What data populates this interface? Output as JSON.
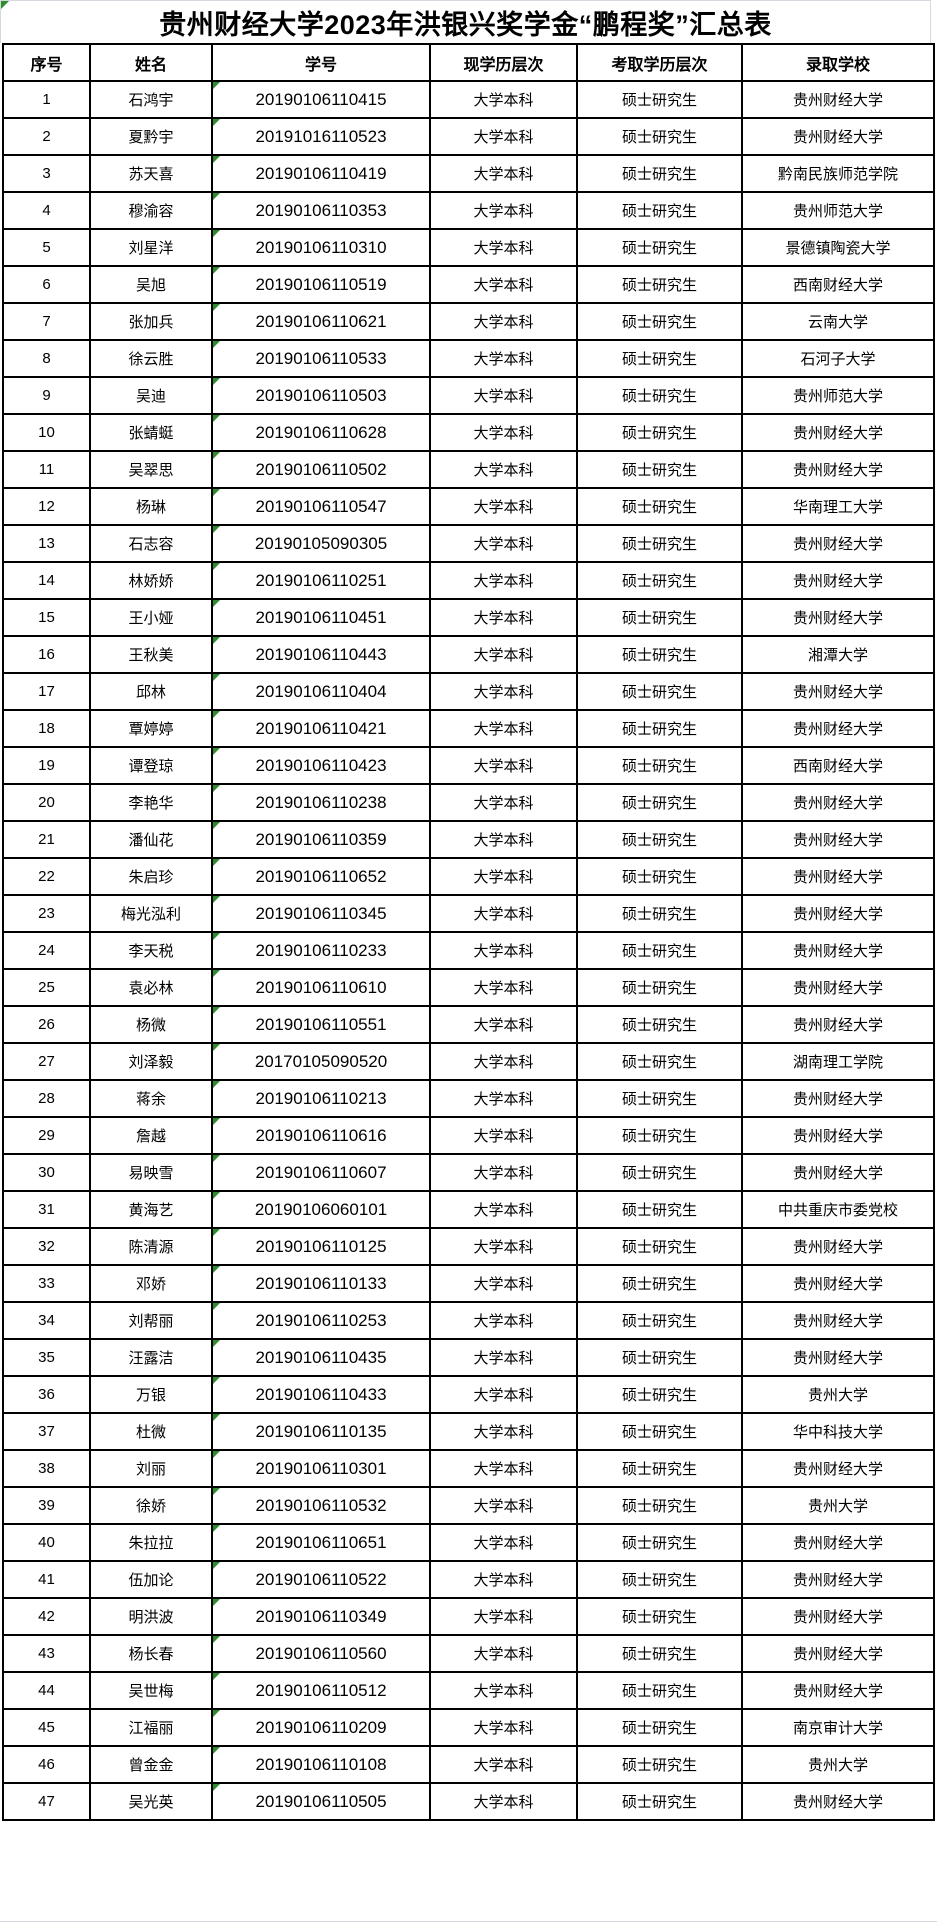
{
  "page": {
    "background_color": "#eef0f4",
    "sheet_color": "#ffffff",
    "gridline_color": "#d4d9e0",
    "table_border_color": "#000000",
    "error_marker_color": "#2e8b2e"
  },
  "title": {
    "text": "贵州财经大学2023年洪银兴奖学金“鹏程奖”汇总表"
  },
  "table": {
    "headers": [
      "序号",
      "姓名",
      "学号",
      "现学历层次",
      "考取学历层次",
      "录取学校"
    ],
    "rows": [
      [
        "1",
        "石鸿宇",
        "20190106110415",
        "大学本科",
        "硕士研究生",
        "贵州财经大学"
      ],
      [
        "2",
        "夏黔宇",
        "20191016110523",
        "大学本科",
        "硕士研究生",
        "贵州财经大学"
      ],
      [
        "3",
        "苏天喜",
        "20190106110419",
        "大学本科",
        "硕士研究生",
        "黔南民族师范学院"
      ],
      [
        "4",
        "穆渝容",
        "20190106110353",
        "大学本科",
        "硕士研究生",
        "贵州师范大学"
      ],
      [
        "5",
        "刘星洋",
        "20190106110310",
        "大学本科",
        "硕士研究生",
        "景德镇陶瓷大学"
      ],
      [
        "6",
        "吴旭",
        "20190106110519",
        "大学本科",
        "硕士研究生",
        "西南财经大学"
      ],
      [
        "7",
        "张加兵",
        "20190106110621",
        "大学本科",
        "硕士研究生",
        "云南大学"
      ],
      [
        "8",
        "徐云胜",
        "20190106110533",
        "大学本科",
        "硕士研究生",
        "石河子大学"
      ],
      [
        "9",
        "吴迪",
        "20190106110503",
        "大学本科",
        "硕士研究生",
        "贵州师范大学"
      ],
      [
        "10",
        "张蜻蜓",
        "20190106110628",
        "大学本科",
        "硕士研究生",
        "贵州财经大学"
      ],
      [
        "11",
        "吴翠思",
        "20190106110502",
        "大学本科",
        "硕士研究生",
        "贵州财经大学"
      ],
      [
        "12",
        "杨琳",
        "20190106110547",
        "大学本科",
        "硕士研究生",
        "华南理工大学"
      ],
      [
        "13",
        "石志容",
        "20190105090305",
        "大学本科",
        "硕士研究生",
        "贵州财经大学"
      ],
      [
        "14",
        "林娇娇",
        "20190106110251",
        "大学本科",
        "硕士研究生",
        "贵州财经大学"
      ],
      [
        "15",
        "王小娅",
        "20190106110451",
        "大学本科",
        "硕士研究生",
        "贵州财经大学"
      ],
      [
        "16",
        "王秋美",
        "20190106110443",
        "大学本科",
        "硕士研究生",
        "湘潭大学"
      ],
      [
        "17",
        "邱林",
        "20190106110404",
        "大学本科",
        "硕士研究生",
        "贵州财经大学"
      ],
      [
        "18",
        "覃婷婷",
        "20190106110421",
        "大学本科",
        "硕士研究生",
        "贵州财经大学"
      ],
      [
        "19",
        "谭登琼",
        "20190106110423",
        "大学本科",
        "硕士研究生",
        "西南财经大学"
      ],
      [
        "20",
        "李艳华",
        "20190106110238",
        "大学本科",
        "硕士研究生",
        "贵州财经大学"
      ],
      [
        "21",
        "潘仙花",
        "20190106110359",
        "大学本科",
        "硕士研究生",
        "贵州财经大学"
      ],
      [
        "22",
        "朱启珍",
        "20190106110652",
        "大学本科",
        "硕士研究生",
        "贵州财经大学"
      ],
      [
        "23",
        "梅光泓利",
        "20190106110345",
        "大学本科",
        "硕士研究生",
        "贵州财经大学"
      ],
      [
        "24",
        "李天税",
        "20190106110233",
        "大学本科",
        "硕士研究生",
        "贵州财经大学"
      ],
      [
        "25",
        "袁必林",
        "20190106110610",
        "大学本科",
        "硕士研究生",
        "贵州财经大学"
      ],
      [
        "26",
        "杨微",
        "20190106110551",
        "大学本科",
        "硕士研究生",
        "贵州财经大学"
      ],
      [
        "27",
        "刘泽毅",
        "20170105090520",
        "大学本科",
        "硕士研究生",
        "湖南理工学院"
      ],
      [
        "28",
        "蒋余",
        "20190106110213",
        "大学本科",
        "硕士研究生",
        "贵州财经大学"
      ],
      [
        "29",
        "詹越",
        "20190106110616",
        "大学本科",
        "硕士研究生",
        "贵州财经大学"
      ],
      [
        "30",
        "易映雪",
        "20190106110607",
        "大学本科",
        "硕士研究生",
        "贵州财经大学"
      ],
      [
        "31",
        "黄海艺",
        "20190106060101",
        "大学本科",
        "硕士研究生",
        "中共重庆市委党校"
      ],
      [
        "32",
        "陈清源",
        "20190106110125",
        "大学本科",
        "硕士研究生",
        "贵州财经大学"
      ],
      [
        "33",
        "邓娇",
        "20190106110133",
        "大学本科",
        "硕士研究生",
        "贵州财经大学"
      ],
      [
        "34",
        "刘帮丽",
        "20190106110253",
        "大学本科",
        "硕士研究生",
        "贵州财经大学"
      ],
      [
        "35",
        "汪露洁",
        "20190106110435",
        "大学本科",
        "硕士研究生",
        "贵州财经大学"
      ],
      [
        "36",
        "万银",
        "20190106110433",
        "大学本科",
        "硕士研究生",
        "贵州大学"
      ],
      [
        "37",
        "杜微",
        "20190106110135",
        "大学本科",
        "硕士研究生",
        "华中科技大学"
      ],
      [
        "38",
        "刘丽",
        "20190106110301",
        "大学本科",
        "硕士研究生",
        "贵州财经大学"
      ],
      [
        "39",
        "徐娇",
        "20190106110532",
        "大学本科",
        "硕士研究生",
        "贵州大学"
      ],
      [
        "40",
        "朱拉拉",
        "20190106110651",
        "大学本科",
        "硕士研究生",
        "贵州财经大学"
      ],
      [
        "41",
        "伍加论",
        "20190106110522",
        "大学本科",
        "硕士研究生",
        "贵州财经大学"
      ],
      [
        "42",
        "明洪波",
        "20190106110349",
        "大学本科",
        "硕士研究生",
        "贵州财经大学"
      ],
      [
        "43",
        "杨长春",
        "20190106110560",
        "大学本科",
        "硕士研究生",
        "贵州财经大学"
      ],
      [
        "44",
        "吴世梅",
        "20190106110512",
        "大学本科",
        "硕士研究生",
        "贵州财经大学"
      ],
      [
        "45",
        "江福丽",
        "20190106110209",
        "大学本科",
        "硕士研究生",
        "南京审计大学"
      ],
      [
        "46",
        "曾金金",
        "20190106110108",
        "大学本科",
        "硕士研究生",
        "贵州大学"
      ],
      [
        "47",
        "吴光英",
        "20190106110505",
        "大学本科",
        "硕士研究生",
        "贵州财经大学"
      ]
    ]
  }
}
